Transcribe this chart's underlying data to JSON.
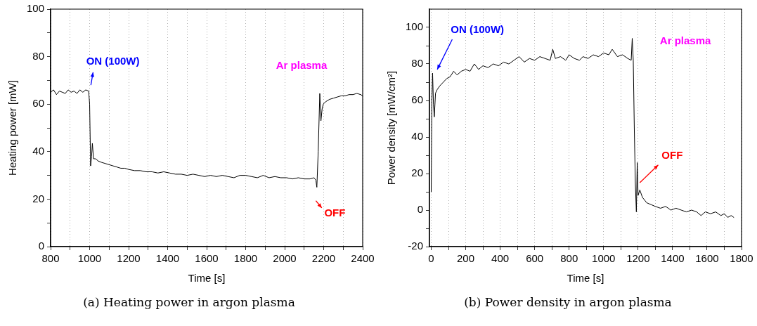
{
  "chart_data": [
    {
      "type": "line",
      "title": "(a) Heating power in argon plasma",
      "xlabel": "Time [s]",
      "ylabel": "Heating power [mW]",
      "xlim": [
        800,
        2400
      ],
      "xticks": [
        800,
        {
          "value": 900,
          "label": null
        },
        1000,
        {
          "value": 1100,
          "label": null
        },
        1200,
        {
          "value": 1300,
          "label": null
        },
        1400,
        {
          "value": 1500,
          "label": null
        },
        1600,
        {
          "value": 1700,
          "label": null
        },
        1800,
        {
          "value": 1900,
          "label": null
        },
        2000,
        {
          "value": 2100,
          "label": null
        },
        2200,
        {
          "value": 2300,
          "label": null
        },
        2400
      ],
      "ylim": [
        0,
        100
      ],
      "yticks": [
        0,
        {
          "value": 10,
          "label": null
        },
        20,
        {
          "value": 30,
          "label": null
        },
        40,
        {
          "value": 50,
          "label": null
        },
        60,
        {
          "value": 70,
          "label": null
        },
        80,
        {
          "value": 90,
          "label": null
        },
        100
      ],
      "grid": "x",
      "legend": false,
      "marker": "none",
      "line_style": "solid",
      "annotations": [
        "ON (100W)",
        "OFF",
        "Ar plasma"
      ],
      "series": [
        {
          "color": "#000000",
          "x": [
            800,
            815,
            830,
            845,
            860,
            875,
            890,
            905,
            920,
            935,
            950,
            965,
            980,
            995,
            1000,
            1005,
            1010,
            1014,
            1020,
            1030,
            1045,
            1060,
            1080,
            1100,
            1120,
            1140,
            1160,
            1180,
            1200,
            1230,
            1260,
            1290,
            1320,
            1350,
            1380,
            1410,
            1440,
            1470,
            1500,
            1530,
            1560,
            1590,
            1620,
            1650,
            1680,
            1710,
            1740,
            1770,
            1800,
            1830,
            1860,
            1890,
            1920,
            1950,
            1980,
            2010,
            2040,
            2070,
            2100,
            2130,
            2150,
            2160,
            2165,
            2172,
            2180,
            2186,
            2192,
            2198,
            2210,
            2230,
            2250,
            2270,
            2290,
            2310,
            2330,
            2350,
            2370,
            2390,
            2400
          ],
          "values": [
            65,
            66,
            64,
            65.5,
            65,
            64.5,
            66,
            65,
            65.5,
            64.5,
            66,
            65,
            66,
            65.5,
            60,
            34,
            38,
            43.5,
            37,
            37,
            36,
            35.5,
            35,
            34.5,
            34,
            33.5,
            33,
            33,
            32.5,
            32,
            32,
            31.5,
            31.5,
            31,
            31.5,
            31,
            30.5,
            30.5,
            30,
            30.5,
            30,
            29.5,
            30,
            29.5,
            30,
            29.5,
            29,
            30,
            30,
            29.5,
            29,
            30,
            29,
            29.5,
            29,
            29,
            28.5,
            29,
            28.5,
            28.5,
            29,
            28,
            25,
            40,
            64.5,
            53,
            58,
            60,
            61,
            62,
            62.5,
            63,
            63.5,
            63.5,
            64,
            64,
            64.5,
            64,
            63.5
          ]
        }
      ]
    },
    {
      "type": "line",
      "title": "(b) Power density in argon plasma",
      "xlabel": "Time [s]",
      "ylabel": "Power density [mW/cm²]",
      "xlim": [
        -10,
        1800
      ],
      "xticks": [
        0,
        {
          "value": 100,
          "label": null
        },
        200,
        {
          "value": 300,
          "label": null
        },
        400,
        {
          "value": 500,
          "label": null
        },
        600,
        {
          "value": 700,
          "label": null
        },
        800,
        {
          "value": 900,
          "label": null
        },
        1000,
        {
          "value": 1100,
          "label": null
        },
        1200,
        {
          "value": 1300,
          "label": null
        },
        1400,
        {
          "value": 1500,
          "label": null
        },
        1600,
        {
          "value": 1700,
          "label": null
        },
        1800
      ],
      "ylim": [
        -20,
        110
      ],
      "yticks": [
        -20,
        {
          "value": -10,
          "label": null
        },
        0,
        {
          "value": 10,
          "label": null
        },
        20,
        {
          "value": 30,
          "label": null
        },
        40,
        {
          "value": 50,
          "label": null
        },
        60,
        {
          "value": 70,
          "label": null
        },
        80,
        {
          "value": 90,
          "label": null
        },
        100
      ],
      "grid": "x",
      "legend": false,
      "marker": "none",
      "line_style": "solid",
      "annotations": [
        "ON (100W)",
        "OFF",
        "Ar plasma"
      ],
      "series": [
        {
          "color": "#000000",
          "x": [
            0,
            4,
            8,
            13,
            18,
            25,
            35,
            50,
            70,
            90,
            110,
            130,
            150,
            175,
            200,
            225,
            250,
            275,
            300,
            330,
            360,
            390,
            420,
            450,
            480,
            510,
            540,
            570,
            600,
            630,
            660,
            690,
            705,
            720,
            750,
            780,
            800,
            830,
            860,
            880,
            910,
            940,
            970,
            1000,
            1030,
            1050,
            1080,
            1110,
            1140,
            1160,
            1166,
            1172,
            1178,
            1184,
            1190,
            1195,
            1200,
            1210,
            1225,
            1250,
            1275,
            1300,
            1330,
            1360,
            1390,
            1420,
            1450,
            1480,
            1510,
            1540,
            1565,
            1590,
            1620,
            1650,
            1680,
            1700,
            1720,
            1740,
            1755
          ],
          "values": [
            10,
            60,
            75,
            58,
            51,
            64,
            66,
            68,
            70,
            72,
            73,
            76,
            74,
            76,
            77,
            76,
            80,
            77,
            79,
            78,
            80,
            79,
            81,
            80,
            82,
            84,
            81,
            83,
            82,
            84,
            83,
            82,
            88,
            83,
            84,
            82,
            85,
            83,
            82,
            84,
            83,
            85,
            84,
            86,
            85,
            88,
            84,
            85,
            83,
            82,
            94,
            82,
            45,
            15,
            -1,
            26,
            8,
            11,
            7,
            4,
            3,
            2,
            1,
            2,
            0,
            1,
            0,
            -1,
            0,
            -1,
            -3,
            -1,
            -2,
            -1,
            -3,
            -2,
            -4,
            -3,
            -4
          ]
        }
      ]
    }
  ]
}
